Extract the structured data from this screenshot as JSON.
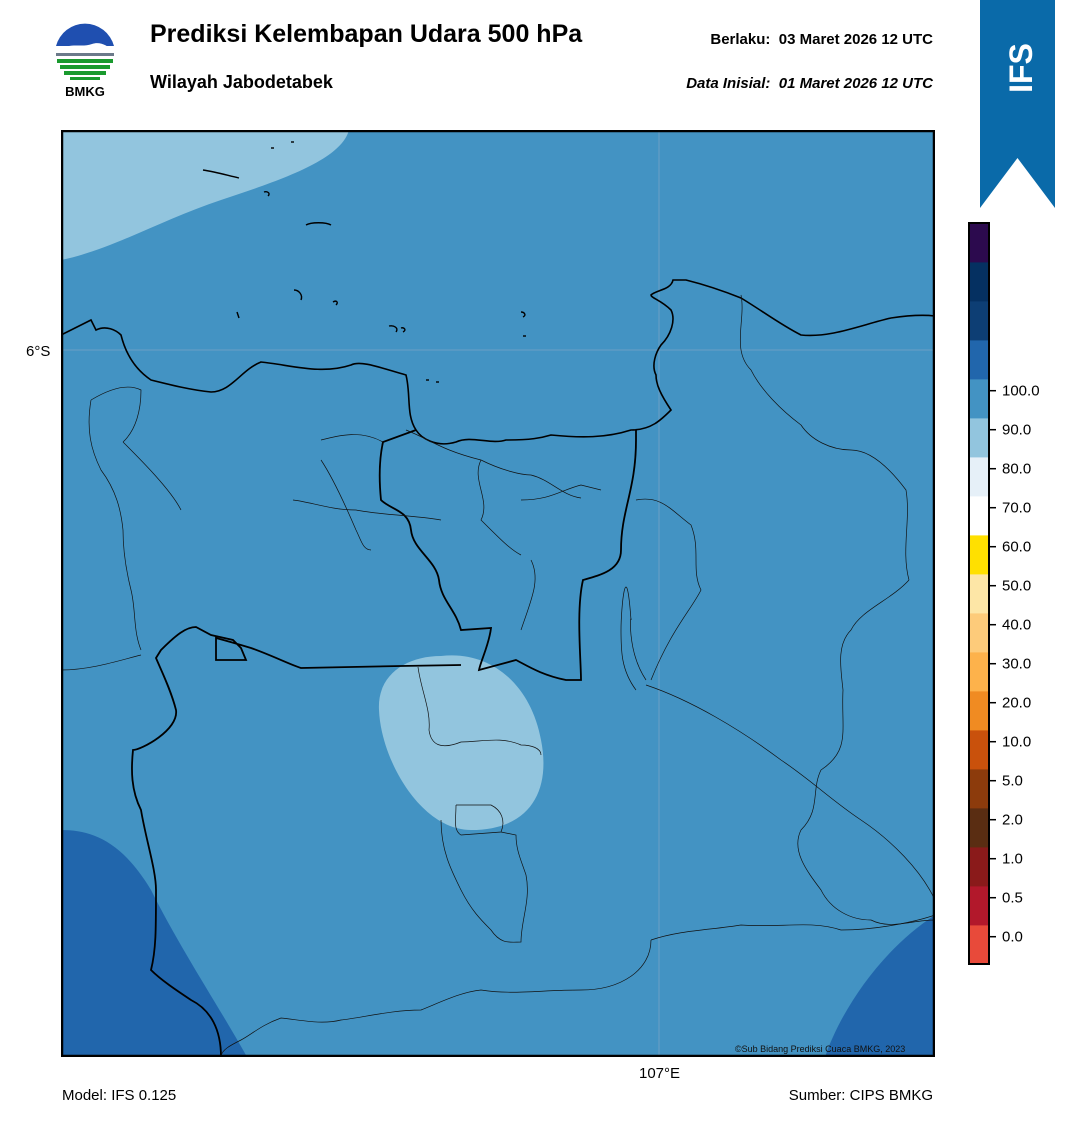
{
  "header": {
    "logo_text": "BMKG",
    "title": "Prediksi Kelembapan Udara 500 hPa",
    "subtitle": "Wilayah Jabodetabek",
    "valid_label": "Berlaku:",
    "valid_value": "03 Maret 2026 12 UTC",
    "init_label": "Data Inisial:",
    "init_value": "01 Maret 2026 12 UTC"
  },
  "ribbon": {
    "text": "IFS",
    "color": "#0a6aa9"
  },
  "map": {
    "lat_label": "6°S",
    "lon_label": "107°E",
    "credit": "©Sub Bidang Prediksi Cuaca BMKG, 2023",
    "colors": {
      "base": "#4393c3",
      "light": "#92c5de",
      "dark": "#2166ac"
    }
  },
  "footer": {
    "model": "Model: IFS 0.125",
    "source": "Sumber: CIPS BMKG"
  },
  "colorbar": {
    "ticks": [
      "0.0",
      "0.5",
      "1.0",
      "2.0",
      "5.0",
      "10.0",
      "20.0",
      "30.0",
      "40.0",
      "50.0",
      "60.0",
      "70.0",
      "80.0",
      "90.0",
      "100.0"
    ],
    "colors": [
      "#e84a3a",
      "#b2182b",
      "#8a1a1a",
      "#5a2d12",
      "#8c3b0c",
      "#c9510c",
      "#f08b22",
      "#fdb24b",
      "#fdcb7a",
      "#fde6a6",
      "#ffe000",
      "#ffffff",
      "#e6f0f8",
      "#92c5de",
      "#4393c3",
      "#2166ac",
      "#0d3e74",
      "#053061",
      "#2c0a4e"
    ]
  }
}
